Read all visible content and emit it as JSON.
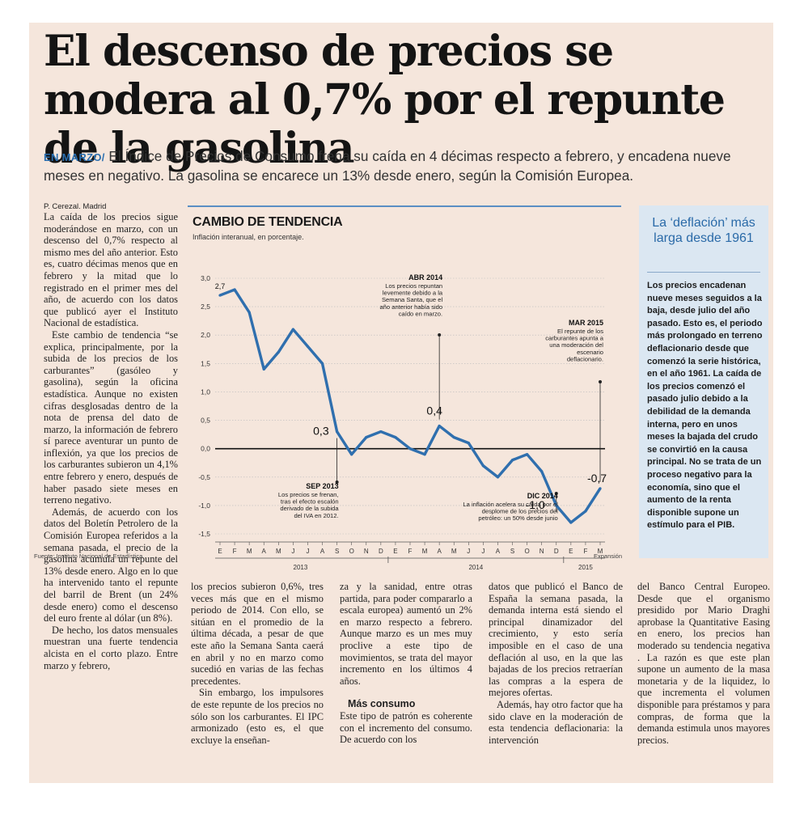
{
  "headline": "El descenso de precios se modera al 0,7% por el repunte de la gasolina",
  "subhead": {
    "kicker": "EN MARZO/",
    "text": " El Índice de Precios de Consumo frena su caída en 4 décimas respecto a  febrero, y encadena nueve meses en negativo. La gasolina se encarece un 13% desde enero, según la Comisión Europea."
  },
  "byline": "P. Cerezal. Madrid",
  "col1": [
    "La caída de los precios sigue moderándose en marzo, con un descenso del 0,7% respecto al mismo mes del año anterior. Esto es, cuatro décimas menos que en febrero y la mitad que lo registrado en el primer mes del año, de acuerdo con los datos que publicó ayer el Instituto Nacional de estadística.",
    "Este cambio de tendencia “se explica, principalmente, por la subida de los precios de los carburantes” (gasóleo y gasolina), según la oficina estadística. Aunque no existen cifras desglosadas dentro de la nota de prensa del dato de marzo, la información de febrero sí parece aventurar un punto de inflexión, ya que los precios de los carburantes subieron un 4,1% entre febrero y enero, después de haber pasado siete meses en terreno negativo.",
    "Además, de acuerdo con los datos del Boletín Petrolero de la Comisión Europea referidos a la semana pasada, el precio de la gasolina acumula un repunte del 13% desde enero. Algo en lo que ha intervenido tanto el repunte del barril de Brent (un 24% desde enero) como el descenso del euro frente al dólar (un 8%).",
    "De hecho, los datos mensuales muestran una fuerte tendencia alcista en el corto plazo. Entre marzo y febrero,"
  ],
  "col2": [
    "los precios subieron 0,6%, tres veces más que en el mismo periodo de 2014. Con ello, se sitúan en el promedio de la última década, a pesar de que este año la Semana Santa caerá en abril y no en marzo como sucedió en varias de las fechas precedentes.",
    "Sin embargo, los impulsores de este repunte de los precios no sólo son los carburantes. El IPC armonizado (esto es, el que excluye la enseñan-"
  ],
  "col3": [
    "za y la sanidad, entre otras partida, para poder compararlo a escala europea) aumentó un 2% en marzo respecto a febrero. Aunque marzo es un mes muy proclive a este tipo de movimientos, se trata del mayor incremento en los últimos 4 años."
  ],
  "col3_crosshead": "Más consumo",
  "col3b": [
    "Este tipo de patrón es coherente con el incremento del consumo. De acuerdo con los"
  ],
  "col4": [
    "datos que publicó el Banco de España la semana pasada, la demanda interna está siendo el principal dinamizador del crecimiento, y esto sería imposible en el caso de una deflación al uso, en la que las bajadas de los precios retraerían las compras a la espera de mejores ofertas.",
    "Además, hay otro factor que ha sido clave en la moderación de esta tendencia deflacionaria: la intervención"
  ],
  "col5": [
    "del Banco Central Europeo. Desde que el organismo presidido por Mario Draghi aprobase la Quantitative Easing en enero, los precios han moderado su tendencia negativa . La razón es que este plan supone un aumento de la masa monetaria y de la liquidez, lo que incrementa el volumen disponible para préstamos y para compras, de forma que la demanda estimula unos mayores precios."
  ],
  "sidebar": {
    "title": "La ‘deflación’ más larga desde 1961",
    "body": "Los precios encadenan nueve meses seguidos a la baja, desde julio del año pasado. Esto es, el periodo más prolongado en terreno deflacionario desde que comenzó la serie histórica, en el año 1961. La caída de los precios comenzó el pasado julio debido a la debilidad de la demanda interna, pero en unos meses la bajada del crudo se convirtió en la causa principal. No se trata de un proceso negativo para la economía, sino que el aumento de la renta disponible supone un estímulo para el PIB."
  },
  "chart_data": {
    "type": "line",
    "title": "CAMBIO DE TENDENCIA",
    "subtitle": "Inflación interanual, en porcentaje.",
    "source": "Fuente: Instituto Nacional de Estadística",
    "credit": "Expansión",
    "x": [
      "E",
      "F",
      "M",
      "A",
      "M",
      "J",
      "J",
      "A",
      "S",
      "O",
      "N",
      "D",
      "E",
      "F",
      "M",
      "A",
      "M",
      "J",
      "J",
      "A",
      "S",
      "O",
      "N",
      "D",
      "E",
      "F",
      "M"
    ],
    "years": [
      {
        "label": "2013",
        "from": 0,
        "to": 11
      },
      {
        "label": "2014",
        "from": 12,
        "to": 23
      },
      {
        "label": "2015",
        "from": 24,
        "to": 26
      }
    ],
    "values": [
      2.7,
      2.8,
      2.4,
      1.4,
      1.7,
      2.1,
      1.8,
      1.5,
      0.3,
      -0.1,
      0.2,
      0.3,
      0.2,
      0.0,
      -0.1,
      0.4,
      0.2,
      0.1,
      -0.3,
      -0.5,
      -0.2,
      -0.1,
      -0.4,
      -1.0,
      -1.3,
      -1.1,
      -0.7
    ],
    "yticks": [
      "3,0",
      "2,5",
      "2,0",
      "1,5",
      "1,0",
      "0,5",
      "0,0",
      "-0,5",
      "-1,0",
      "-1,5"
    ],
    "ylim": [
      -1.5,
      3.0
    ],
    "value_labels": [
      {
        "index": 0,
        "text": "2,7"
      },
      {
        "index": 8,
        "text": "0,3"
      },
      {
        "index": 15,
        "text": "0,4"
      },
      {
        "index": 23,
        "text": "-1,0"
      },
      {
        "index": 26,
        "text": "-0,7"
      }
    ],
    "annotations": [
      {
        "index": 15,
        "title": "ABR 2014",
        "lines": [
          "Los precios repuntan",
          "levemente debido a la",
          "Semana Santa, que el",
          "año anterior había sido",
          "caído en marzo."
        ]
      },
      {
        "index": 26,
        "title": "MAR 2015",
        "lines": [
          "El repunte de los",
          "carburantes apunta a",
          "una moderación del",
          "escenario",
          "deflacionario."
        ]
      },
      {
        "index": 8,
        "title": "SEP 2013",
        "lines": [
          "Los precios se frenan,",
          "tras el efecto escalón",
          "derivado de la subida",
          "del IVA en 2012."
        ]
      },
      {
        "index": 23,
        "title": "DIC 2014",
        "lines": [
          "La inflación acelera su caída por el",
          "desplome de los precios del",
          "petróleo: un 50% desde junio"
        ]
      }
    ]
  }
}
